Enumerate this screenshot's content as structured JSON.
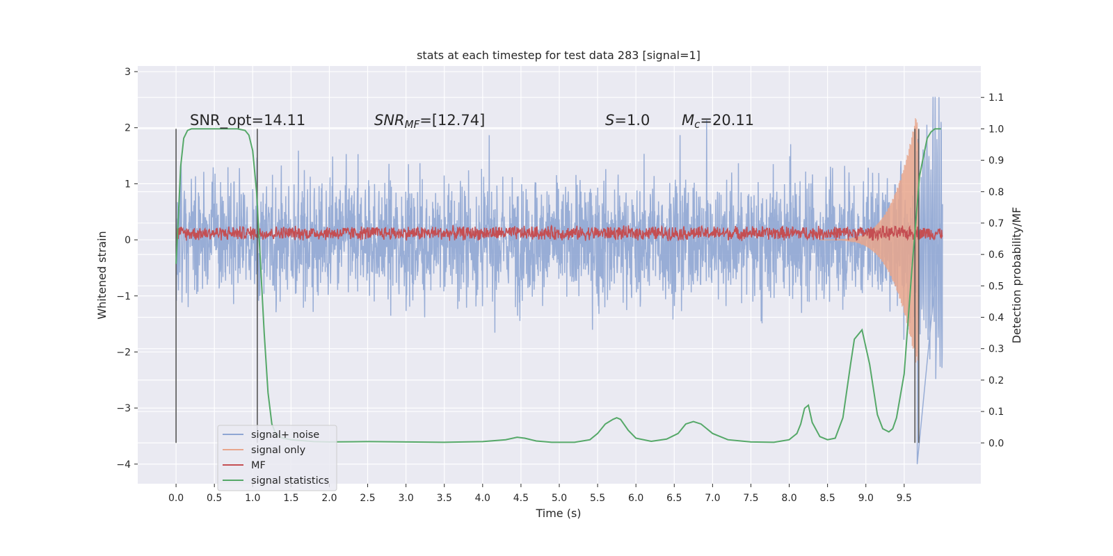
{
  "chart_data": {
    "type": "line",
    "title": "stats at each timestep for test data 283 [signal=1]",
    "xlabel": "Time (s)",
    "ylabel_left": "Whitened strain",
    "ylabel_right": "Detection probability/MF",
    "xlim": [
      -0.5,
      10.5
    ],
    "ylim_left": [
      -4.35,
      3.1
    ],
    "ylim_right": [
      -0.13,
      1.2
    ],
    "x_ticks": [
      "0.0",
      "0.5",
      "1.0",
      "1.5",
      "2.0",
      "2.5",
      "3.0",
      "3.5",
      "4.0",
      "4.5",
      "5.0",
      "5.5",
      "6.0",
      "6.5",
      "7.0",
      "7.5",
      "8.0",
      "8.5",
      "9.0",
      "9.5"
    ],
    "y_ticks_left": [
      "3",
      "2",
      "1",
      "0",
      "−1",
      "−2",
      "−3",
      "−4"
    ],
    "y_ticks_right": [
      "1.1",
      "1.0",
      "0.9",
      "0.8",
      "0.7",
      "0.6",
      "0.5",
      "0.4",
      "0.3",
      "0.2",
      "0.1",
      "0.0"
    ],
    "grid": true,
    "legend_position": "lower-left",
    "annotations": {
      "snr_opt": "SNR_opt=14.11",
      "snr_mf_sym": "SNR",
      "snr_mf_sub": "MF",
      "snr_mf_val": "=[12.74]",
      "s_sym": "S",
      "s_val": "=1.0",
      "mc_sym": "M",
      "mc_sub": "c",
      "mc_val": "=20.11"
    },
    "window_markers_x": [
      0.0,
      1.06,
      9.64,
      9.69
    ],
    "series": [
      {
        "name": "signal+ noise",
        "color": "#8fa6d3",
        "description_of_shape": "white-noise strain spanning t=0 to 10",
        "typical_range": [
          -1.9,
          2.0
        ],
        "extreme_min": -4.0,
        "extreme_max": 2.55
      },
      {
        "name": "signal only",
        "color": "#e8a68c",
        "description_of_shape": "chirp growing near merger at t≈9.65",
        "peak_time": 9.65,
        "peak_amplitude": 2.2
      },
      {
        "name": "MF",
        "color": "#c44e52",
        "description_of_shape": "matched-filter output band around 0.1",
        "typical_range": [
          0.0,
          0.3
        ]
      },
      {
        "name": "signal statistics",
        "color": "#55a868",
        "axis": "right",
        "x": [
          0.0,
          0.03,
          0.06,
          0.1,
          0.15,
          0.2,
          0.3,
          0.4,
          0.5,
          0.6,
          0.7,
          0.8,
          0.9,
          0.95,
          1.0,
          1.05,
          1.1,
          1.15,
          1.2,
          1.25,
          1.3,
          1.35,
          1.4,
          1.5,
          1.6,
          1.8,
          2.0,
          2.5,
          3.0,
          3.5,
          4.0,
          4.3,
          4.45,
          4.55,
          4.7,
          4.9,
          5.2,
          5.4,
          5.5,
          5.6,
          5.7,
          5.75,
          5.8,
          5.9,
          6.0,
          6.2,
          6.4,
          6.55,
          6.65,
          6.75,
          6.85,
          7.0,
          7.2,
          7.5,
          7.8,
          8.0,
          8.1,
          8.15,
          8.2,
          8.25,
          8.3,
          8.4,
          8.5,
          8.6,
          8.7,
          8.8,
          8.85,
          8.95,
          9.05,
          9.15,
          9.22,
          9.3,
          9.35,
          9.4,
          9.5,
          9.6,
          9.7,
          9.8,
          9.85,
          9.9,
          9.95,
          9.98
        ],
        "y": [
          0.57,
          0.72,
          0.88,
          0.97,
          0.995,
          1.0,
          1.0,
          1.0,
          1.0,
          1.0,
          1.0,
          1.0,
          0.995,
          0.98,
          0.93,
          0.8,
          0.58,
          0.35,
          0.16,
          0.06,
          0.03,
          0.02,
          0.015,
          0.01,
          0.008,
          0.004,
          0.003,
          0.004,
          0.003,
          0.002,
          0.004,
          0.01,
          0.018,
          0.015,
          0.006,
          0.002,
          0.002,
          0.01,
          0.03,
          0.06,
          0.075,
          0.08,
          0.075,
          0.04,
          0.015,
          0.005,
          0.012,
          0.03,
          0.06,
          0.068,
          0.06,
          0.03,
          0.01,
          0.003,
          0.002,
          0.01,
          0.03,
          0.06,
          0.11,
          0.12,
          0.065,
          0.02,
          0.01,
          0.015,
          0.08,
          0.25,
          0.33,
          0.36,
          0.25,
          0.09,
          0.045,
          0.035,
          0.045,
          0.08,
          0.22,
          0.55,
          0.85,
          0.97,
          0.99,
          1.0,
          1.0,
          1.0
        ]
      }
    ]
  }
}
